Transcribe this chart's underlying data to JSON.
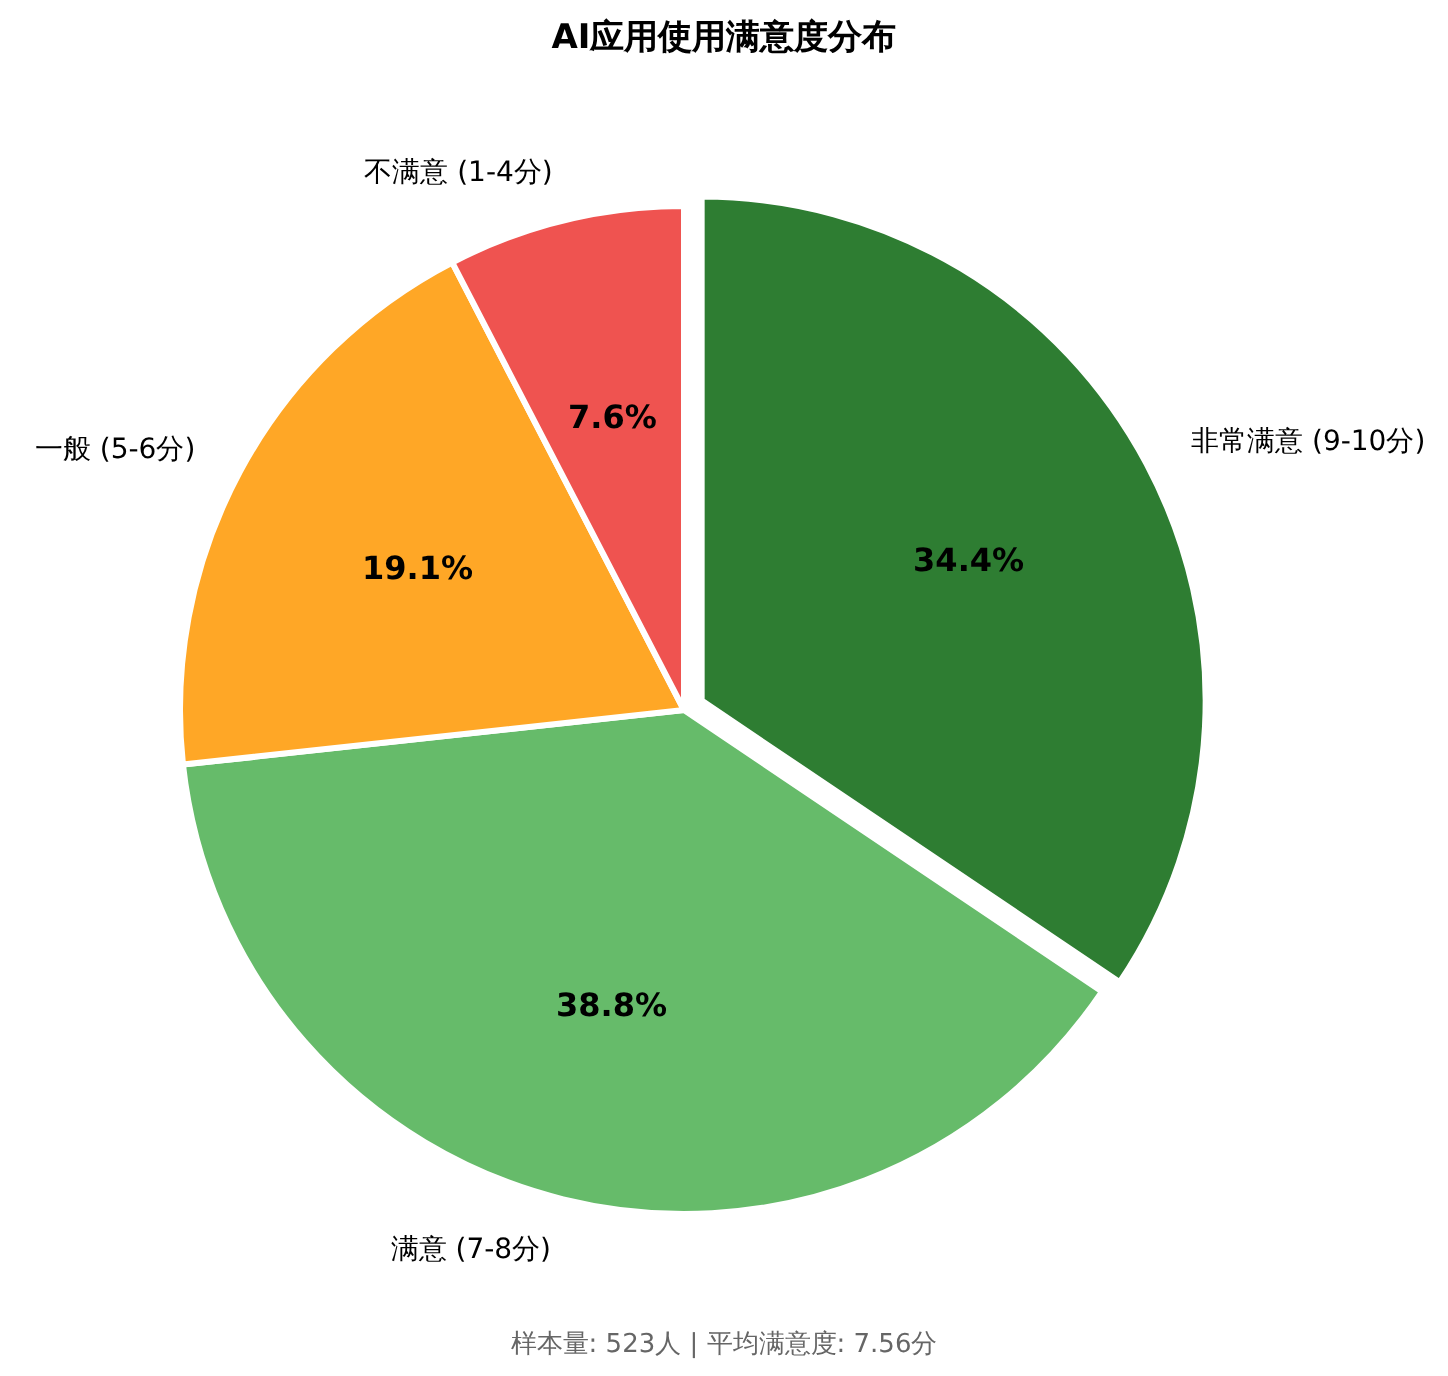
{
  "chart_data": {
    "type": "pie",
    "title": "AI应用使用满意度分布",
    "categories": [
      "非常满意 (9-10分)",
      "满意 (7-8分)",
      "一般 (5-6分)",
      "不满意 (1-4分)"
    ],
    "values": [
      34.4,
      38.8,
      19.1,
      7.6
    ],
    "colors": [
      "#2e7d32",
      "#66bb6a",
      "#ffa726",
      "#ef5350"
    ],
    "value_labels": [
      "34.4%",
      "38.8%",
      "19.1%",
      "7.6%"
    ],
    "annotations": [
      "样本量: 523人 | 平均满意度: 7.56分"
    ]
  }
}
